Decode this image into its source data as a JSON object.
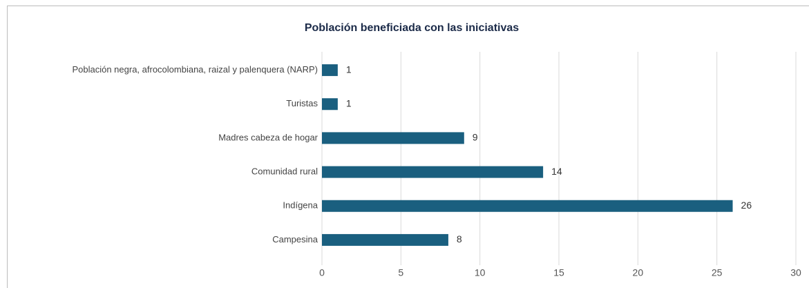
{
  "chart_data": {
    "type": "bar",
    "orientation": "horizontal",
    "title": "Población beneficiada con las iniciativas",
    "categories": [
      "Población negra, afrocolombiana, raizal y palenquera (NARP)",
      "Turistas",
      "Madres cabeza de hogar",
      "Comunidad rural",
      "Indígena",
      "Campesina"
    ],
    "values": [
      1,
      1,
      9,
      14,
      26,
      8
    ],
    "color": "#1a5f7f",
    "xlim": [
      0,
      30
    ],
    "xticks": [
      0,
      5,
      10,
      15,
      20,
      25,
      30
    ],
    "grid": true
  }
}
